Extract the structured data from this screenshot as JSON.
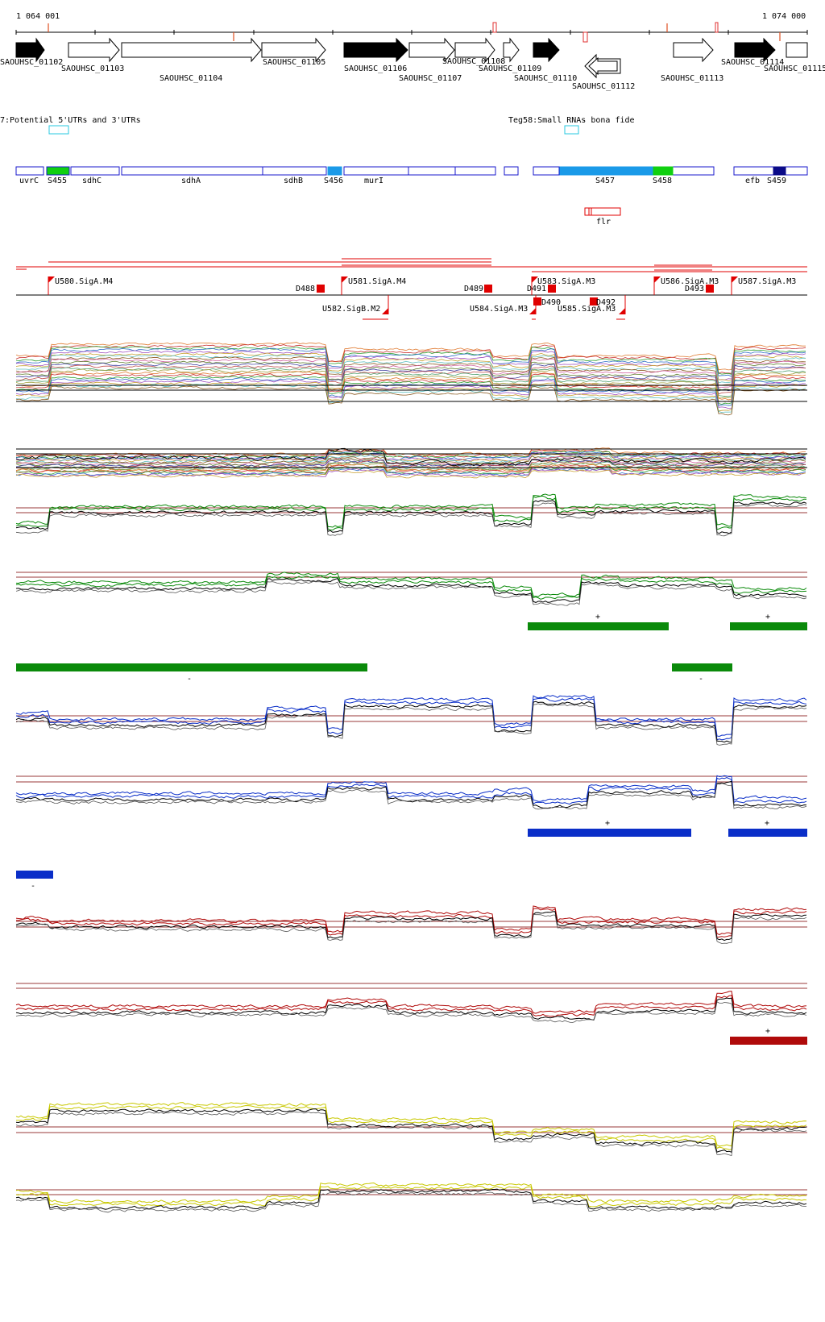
{
  "coords": {
    "start": "1 064 001",
    "end": "1 074 000"
  },
  "colors": {
    "green": "#0a8a0a",
    "blue": "#0a2ec8",
    "red": "#b00a0a",
    "yellow": "#c8c800",
    "brown": "#9a3a3a",
    "cyan": "#28c8e0",
    "geneBlue": "#1a1acc",
    "sRNAlight": "#1a9ae8",
    "sRNAgreen": "#10d010",
    "sRNAnavy": "#0a0a88",
    "promoterRed": "#e00000"
  },
  "genes": [
    {
      "name": "SAOUHSC_01102",
      "strand": "+",
      "fill": "black"
    },
    {
      "name": "SAOUHSC_01103",
      "strand": "+",
      "fill": "white"
    },
    {
      "name": "SAOUHSC_01104",
      "strand": "+",
      "fill": "white"
    },
    {
      "name": "SAOUHSC_01105",
      "strand": "+",
      "fill": "white"
    },
    {
      "name": "SAOUHSC_01106",
      "strand": "+",
      "fill": "black"
    },
    {
      "name": "SAOUHSC_01107",
      "strand": "+",
      "fill": "white"
    },
    {
      "name": "SAOUHSC_01108",
      "strand": "+",
      "fill": "white"
    },
    {
      "name": "SAOUHSC_01109",
      "strand": "+",
      "fill": "white"
    },
    {
      "name": "SAOUHSC_01110",
      "strand": "+",
      "fill": "black"
    },
    {
      "name": "SAOUHSC_01112",
      "strand": "-",
      "fill": "white"
    },
    {
      "name": "SAOUHSC_01113",
      "strand": "+",
      "fill": "white"
    },
    {
      "name": "SAOUHSC_01114",
      "strand": "+",
      "fill": "black"
    },
    {
      "name": "SAOUHSC_01115",
      "strand": "+",
      "fill": "white"
    }
  ],
  "legend": {
    "utr": "7:Potential 5'UTRs and 3'UTRs",
    "srna": "Teg58:Small RNAs bona fide"
  },
  "annotations": [
    {
      "name": "uvrC"
    },
    {
      "name": "S455"
    },
    {
      "name": "sdhC"
    },
    {
      "name": "sdhA"
    },
    {
      "name": "sdhB"
    },
    {
      "name": "S456"
    },
    {
      "name": "murI"
    },
    {
      "name": "S457"
    },
    {
      "name": "S458"
    },
    {
      "name": "efb"
    },
    {
      "name": "S459"
    }
  ],
  "flr": {
    "name": "flr"
  },
  "promoters": [
    {
      "label": "U580.SigA.M4",
      "strand": "+"
    },
    {
      "label": "U581.SigA.M4",
      "strand": "+"
    },
    {
      "label": "U582.SigB.M2",
      "strand": "-"
    },
    {
      "label": "U583.SigA.M3",
      "strand": "+"
    },
    {
      "label": "U584.SigA.M3",
      "strand": "-"
    },
    {
      "label": "U585.SigA.M3",
      "strand": "-"
    },
    {
      "label": "U586.SigA.M3",
      "strand": "+"
    },
    {
      "label": "U587.SigA.M3",
      "strand": "+"
    }
  ],
  "terminators": [
    {
      "label": "D488"
    },
    {
      "label": "D489"
    },
    {
      "label": "D490"
    },
    {
      "label": "D491"
    },
    {
      "label": "D492"
    },
    {
      "label": "D493"
    }
  ],
  "segments": {
    "green_plus": "+",
    "green_minus": "-",
    "blue_plus": "+",
    "blue_minus": "-",
    "red_plus": "+"
  }
}
